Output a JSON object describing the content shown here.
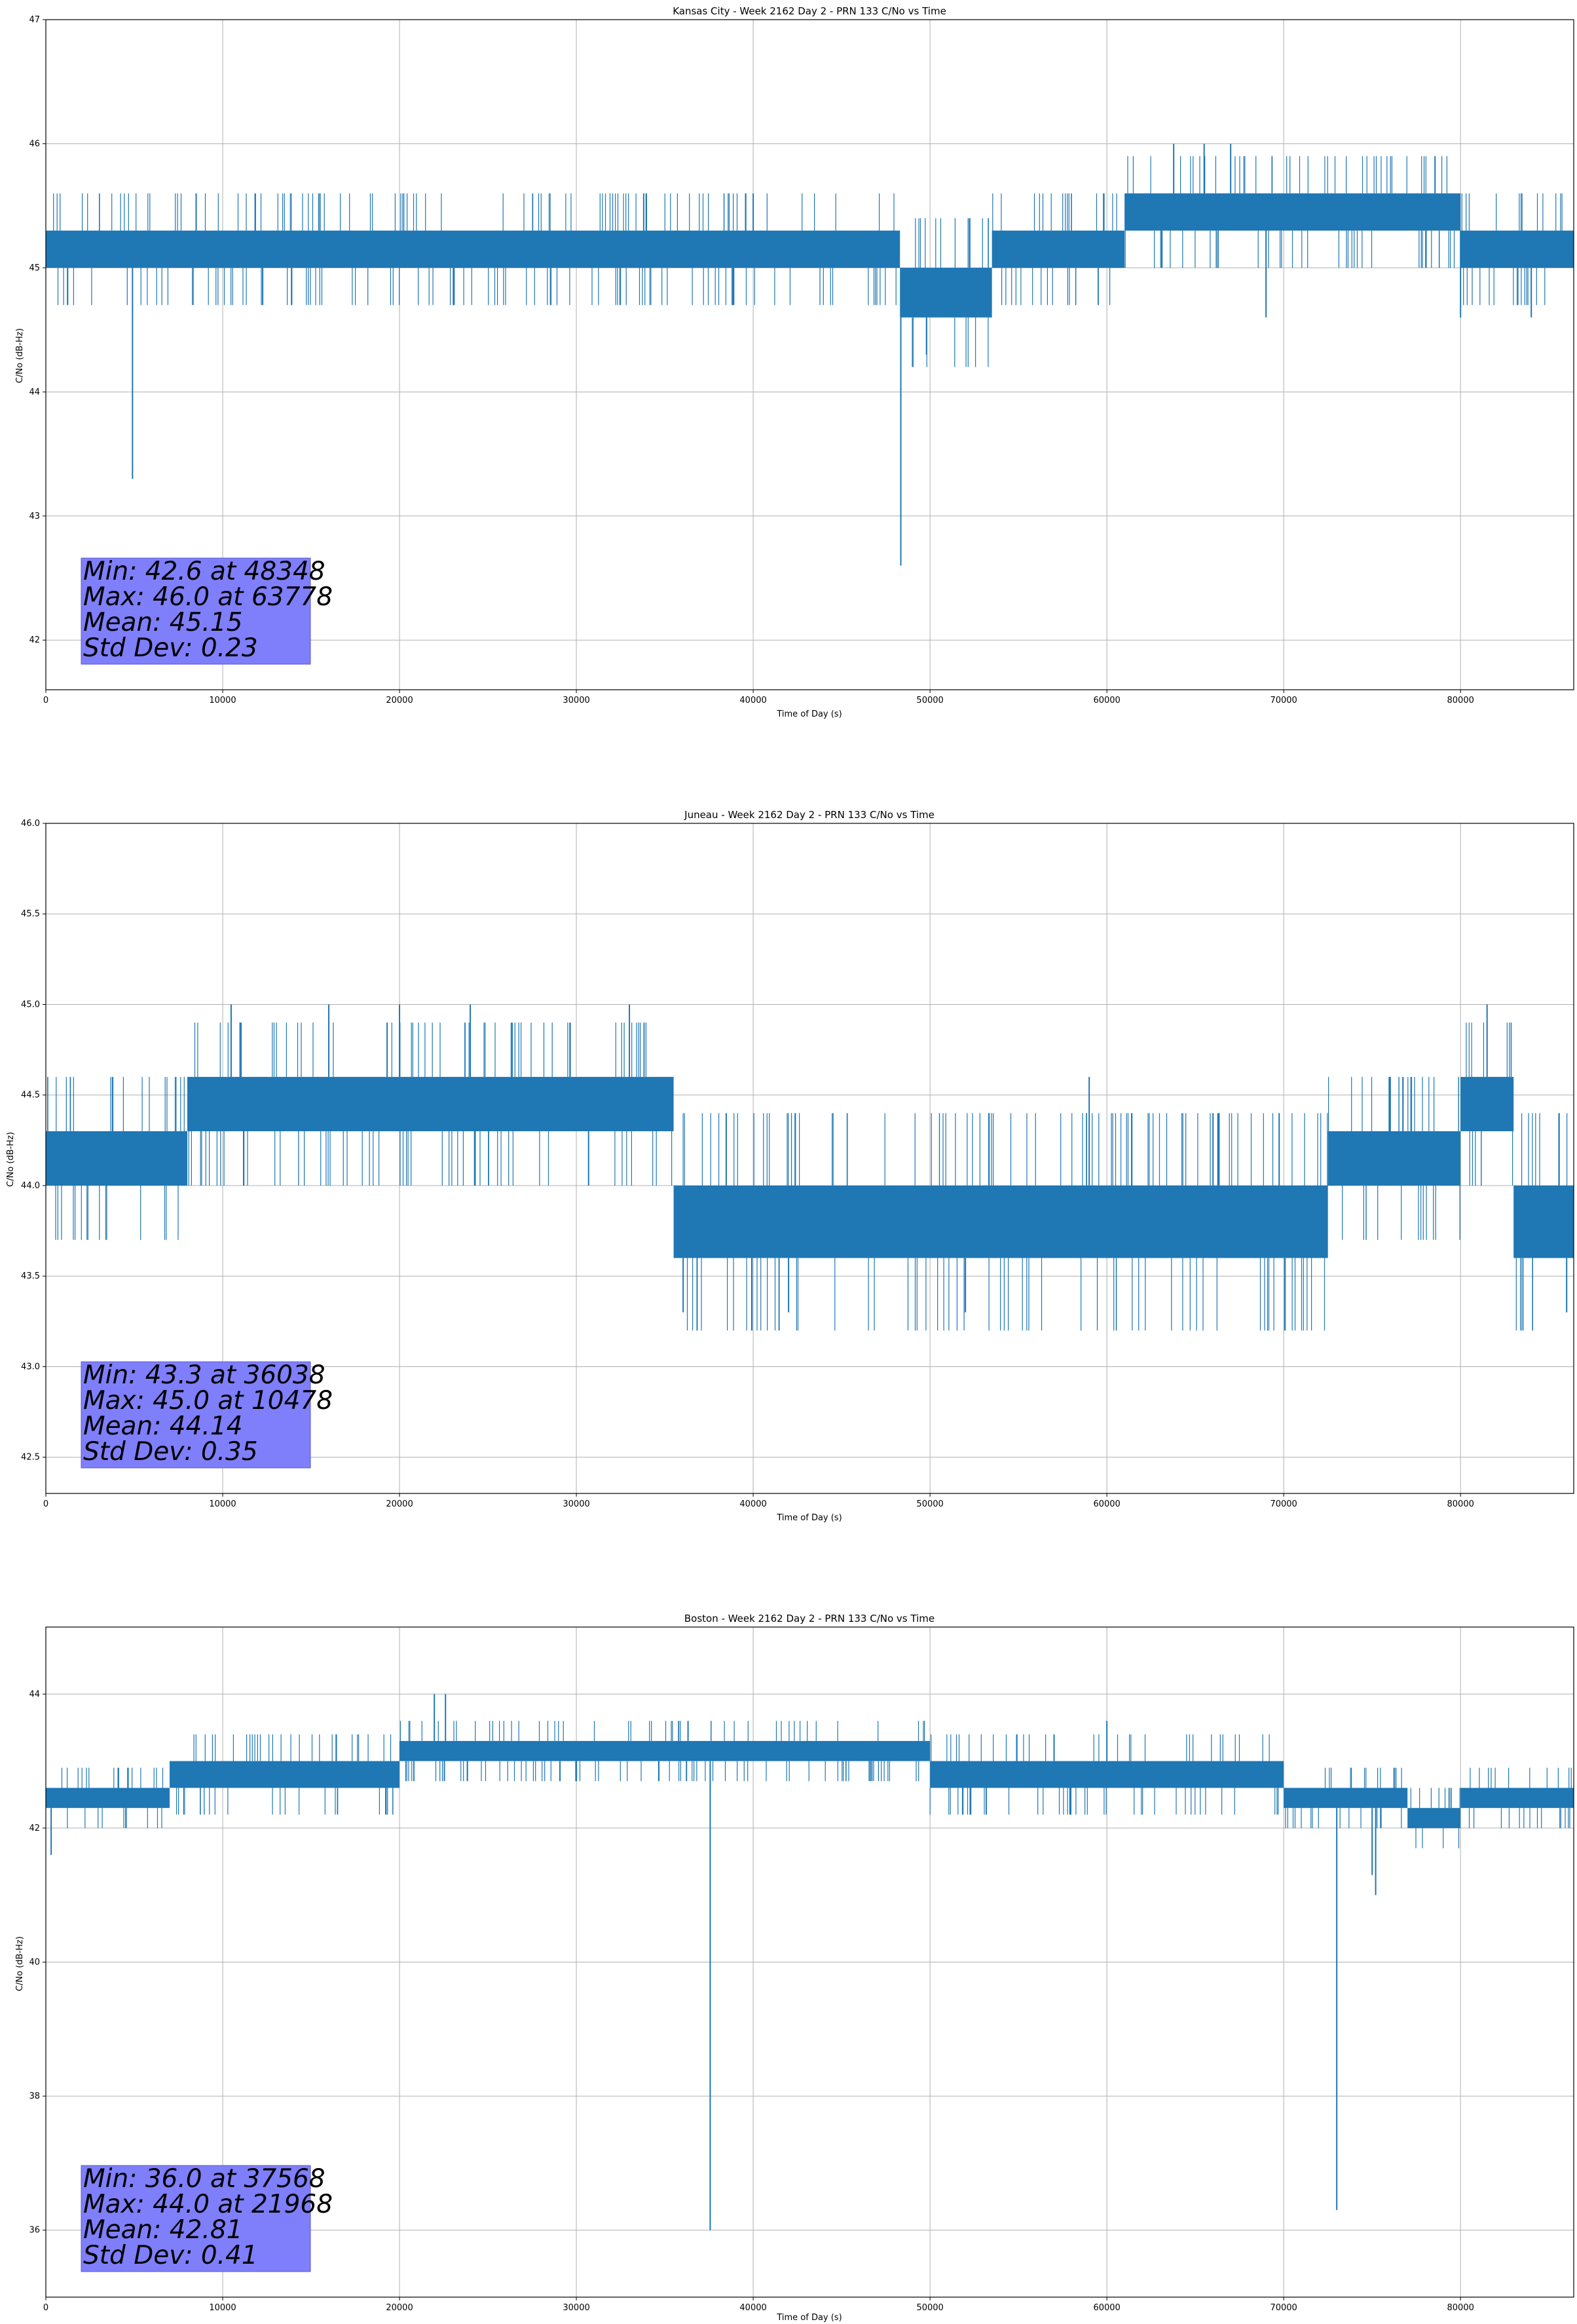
{
  "chart_data": [
    {
      "type": "line",
      "title": "Kansas City - Week 2162 Day 2 - PRN 133 C/No vs Time",
      "xlabel": "Time of Day (s)",
      "ylabel": "C/No (dB-Hz)",
      "xlim": [
        0,
        86400
      ],
      "ylim": [
        41.6,
        47.0
      ],
      "xticks": [
        0,
        10000,
        20000,
        30000,
        40000,
        50000,
        60000,
        70000,
        80000
      ],
      "yticks": [
        42,
        43,
        44,
        45,
        46,
        47
      ],
      "grid": true,
      "color": "#1f77b4",
      "stats": [
        "Min: 42.6 at 48348",
        "Max: 46.0 at 63778",
        "Mean: 45.15",
        "Std Dev: 0.23"
      ],
      "series": [
        {
          "segments": [
            {
              "x0": 0,
              "x1": 48300,
              "low": 45.0,
              "high": 45.3
            },
            {
              "x0": 48300,
              "x1": 53500,
              "low": 44.6,
              "high": 45.0
            },
            {
              "x0": 53500,
              "x1": 61000,
              "low": 45.0,
              "high": 45.3
            },
            {
              "x0": 61000,
              "x1": 80000,
              "low": 45.3,
              "high": 45.6
            },
            {
              "x0": 80000,
              "x1": 86400,
              "low": 45.0,
              "high": 45.3
            }
          ],
          "spikes": [
            {
              "x": 4900,
              "y": 43.3
            },
            {
              "x": 48348,
              "y": 42.6
            },
            {
              "x": 49800,
              "y": 44.3
            },
            {
              "x": 63778,
              "y": 46.0
            },
            {
              "x": 65500,
              "y": 46.0
            },
            {
              "x": 67000,
              "y": 46.0
            },
            {
              "x": 69000,
              "y": 44.6
            },
            {
              "x": 80000,
              "y": 44.6
            },
            {
              "x": 84000,
              "y": 44.6
            },
            {
              "x": 8500,
              "y": 45.6
            },
            {
              "x": 15500,
              "y": 45.6
            },
            {
              "x": 40000,
              "y": 45.6
            }
          ]
        }
      ]
    },
    {
      "type": "line",
      "title": "Juneau - Week 2162 Day 2 - PRN 133 C/No vs Time",
      "xlabel": "Time of Day (s)",
      "ylabel": "C/No (dB-Hz)",
      "xlim": [
        0,
        86400
      ],
      "ylim": [
        42.3,
        46.0
      ],
      "xticks": [
        0,
        10000,
        20000,
        30000,
        40000,
        50000,
        60000,
        70000,
        80000
      ],
      "yticks": [
        42.5,
        43.0,
        43.5,
        44.0,
        44.5,
        45.0,
        45.5,
        46.0
      ],
      "grid": true,
      "color": "#1f77b4",
      "stats": [
        "Min: 43.3 at 36038",
        "Max: 45.0 at 10478",
        "Mean: 44.14",
        "Std Dev: 0.35"
      ],
      "series": [
        {
          "segments": [
            {
              "x0": 0,
              "x1": 8000,
              "low": 44.0,
              "high": 44.3
            },
            {
              "x0": 8000,
              "x1": 35500,
              "low": 44.3,
              "high": 44.6
            },
            {
              "x0": 35500,
              "x1": 72500,
              "low": 43.6,
              "high": 44.0
            },
            {
              "x0": 72500,
              "x1": 80000,
              "low": 44.0,
              "high": 44.3
            },
            {
              "x0": 80000,
              "x1": 83000,
              "low": 44.3,
              "high": 44.6
            },
            {
              "x0": 83000,
              "x1": 86400,
              "low": 43.6,
              "high": 44.0
            }
          ],
          "spikes": [
            {
              "x": 10478,
              "y": 45.0
            },
            {
              "x": 16000,
              "y": 45.0
            },
            {
              "x": 20000,
              "y": 45.0
            },
            {
              "x": 24000,
              "y": 45.0
            },
            {
              "x": 33000,
              "y": 45.0
            },
            {
              "x": 36038,
              "y": 43.3
            },
            {
              "x": 42000,
              "y": 43.3
            },
            {
              "x": 52000,
              "y": 43.3
            },
            {
              "x": 81500,
              "y": 45.0
            },
            {
              "x": 86000,
              "y": 43.3
            },
            {
              "x": 59000,
              "y": 44.6
            },
            {
              "x": 76000,
              "y": 44.6
            }
          ]
        }
      ]
    },
    {
      "type": "line",
      "title": "Boston - Week 2162 Day 2 - PRN 133 C/No vs Time",
      "xlabel": "Time of Day (s)",
      "ylabel": "C/No (dB-Hz)",
      "xlim": [
        0,
        86400
      ],
      "ylim": [
        35.0,
        45.0
      ],
      "xticks": [
        0,
        10000,
        20000,
        30000,
        40000,
        50000,
        60000,
        70000,
        80000
      ],
      "yticks": [
        36,
        38,
        40,
        42,
        44
      ],
      "grid": true,
      "color": "#1f77b4",
      "stats": [
        "Min: 36.0 at 37568",
        "Max: 44.0 at 21968",
        "Mean: 42.81",
        "Std Dev: 0.41"
      ],
      "series": [
        {
          "segments": [
            {
              "x0": 0,
              "x1": 7000,
              "low": 42.3,
              "high": 42.6
            },
            {
              "x0": 7000,
              "x1": 20000,
              "low": 42.6,
              "high": 43.0
            },
            {
              "x0": 20000,
              "x1": 50000,
              "low": 43.0,
              "high": 43.3
            },
            {
              "x0": 50000,
              "x1": 70000,
              "low": 42.6,
              "high": 43.0
            },
            {
              "x0": 70000,
              "x1": 77000,
              "low": 42.3,
              "high": 42.6
            },
            {
              "x0": 77000,
              "x1": 80000,
              "low": 42.0,
              "high": 42.3
            },
            {
              "x0": 80000,
              "x1": 86400,
              "low": 42.3,
              "high": 42.6
            }
          ],
          "spikes": [
            {
              "x": 37568,
              "y": 36.0
            },
            {
              "x": 73000,
              "y": 36.3
            },
            {
              "x": 21968,
              "y": 44.0
            },
            {
              "x": 22600,
              "y": 44.0
            },
            {
              "x": 300,
              "y": 41.6
            },
            {
              "x": 75200,
              "y": 41.0
            },
            {
              "x": 60000,
              "y": 43.6
            },
            {
              "x": 75000,
              "y": 41.3
            }
          ]
        }
      ]
    }
  ]
}
